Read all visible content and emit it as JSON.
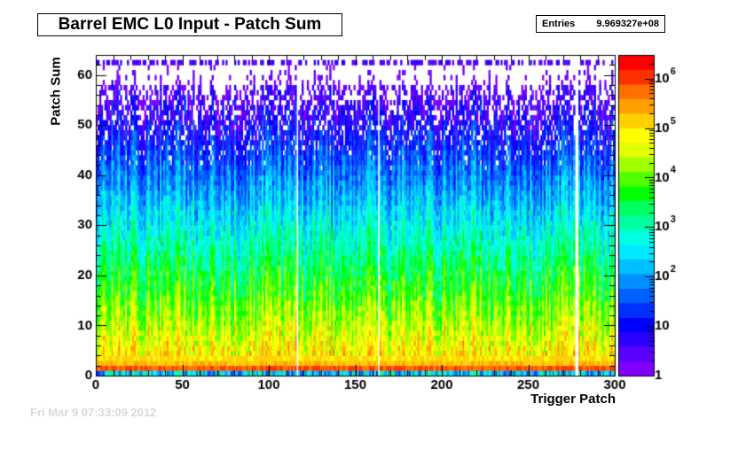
{
  "title": "Barrel EMC L0 Input - Patch Sum",
  "stats": {
    "label": "Entries",
    "value": "9.969327e+08"
  },
  "faded_text": "Fri Mar 9 07:33:09 2012",
  "chart_data": {
    "type": "heatmap",
    "xlabel": "Trigger Patch",
    "ylabel": "Patch Sum",
    "xlim": [
      0,
      300
    ],
    "ylim": [
      0,
      64
    ],
    "x_ticks": [
      "0",
      "50",
      "100",
      "150",
      "200",
      "250",
      "300"
    ],
    "y_ticks": [
      "0",
      "10",
      "20",
      "30",
      "40",
      "50",
      "60"
    ],
    "z_scale": "log",
    "zlim": [
      1,
      3000000
    ],
    "z_ticks": [
      "1",
      "10",
      "10^2",
      "10^3",
      "10^4",
      "10^5",
      "10^6"
    ],
    "grid": false,
    "palette": [
      "#7f00ff",
      "#5a00ff",
      "#2b00ff",
      "#0000ff",
      "#0030ff",
      "#0060ff",
      "#0090ff",
      "#00c0ff",
      "#00e8ff",
      "#00ffe0",
      "#00ffa0",
      "#00ff60",
      "#00ff00",
      "#50ff00",
      "#a0ff00",
      "#e0ff00",
      "#ffff00",
      "#ffd000",
      "#ffa000",
      "#ff7000",
      "#ff3000",
      "#ff0000"
    ],
    "empty_columns": [
      116,
      163,
      277,
      278
    ],
    "peak_row_y": 1,
    "peak_counts_approx": 3000000,
    "total_entries": 996932700
  }
}
